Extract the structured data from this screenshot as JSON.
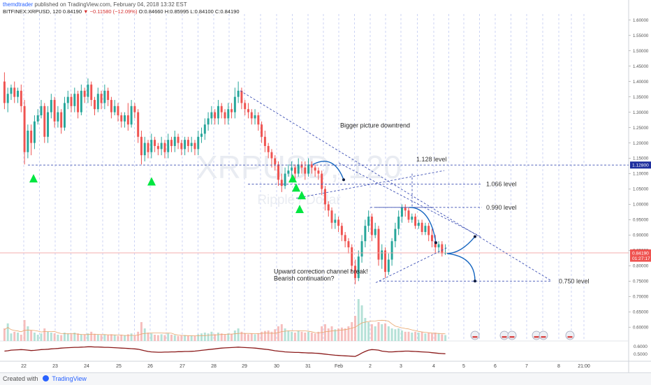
{
  "header": {
    "author": "themdtrader",
    "published": "published on TradingView.com, February 04, 2018 13:32 EST",
    "symbol": "BITFINEX:XRPUSD, 120",
    "last": "0.84190",
    "change": "−0.11580 (−12.09%)",
    "open": "O:0.84660",
    "high": "H:0.85995",
    "low": "L:0.84100",
    "close": "C:0.84190"
  },
  "footer": {
    "created_with": "Created with",
    "brand": "TradingView"
  },
  "watermark": {
    "symbol": "XRPUSD, 120",
    "name": "Ripple / Dollar"
  },
  "colors": {
    "up": "#26a69a",
    "down": "#ef5350",
    "accent": "#2962ff",
    "level": "#3f51b5",
    "arrow": "#1565c0",
    "signal": "#00e640",
    "ind": "#8b1a1a"
  },
  "chart_data": {
    "type": "candlestick",
    "symbol": "BITFINEX:XRPUSD",
    "interval": "120",
    "ylim": [
      0.555,
      1.62
    ],
    "y_ticks": [
      "1.60000",
      "1.55000",
      "1.50000",
      "1.45000",
      "1.40000",
      "1.35000",
      "1.30000",
      "1.25000",
      "1.20000",
      "1.15000",
      "1.10000",
      "1.05000",
      "1.00000",
      "0.95000",
      "0.90000",
      "0.85000",
      "0.80000",
      "0.75000",
      "0.70000",
      "0.65000",
      "0.60000"
    ],
    "x_ticks": [
      "22",
      "23",
      "24",
      "25",
      "26",
      "27",
      "28",
      "29",
      "30",
      "31",
      "Feb",
      "2",
      "3",
      "4",
      "5",
      "6",
      "7",
      "8",
      "21:00"
    ],
    "price_labels": [
      {
        "text": "1.12800",
        "value": 1.128
      },
      {
        "text": "0.84190",
        "value": 0.8419
      },
      {
        "text": "01:27:17",
        "value": 0.8245
      }
    ],
    "levels": [
      {
        "label": "1.128 level",
        "value": 1.128
      },
      {
        "label": "1.066 level",
        "value": 1.066
      },
      {
        "label": "0.990 level",
        "value": 0.99
      },
      {
        "label": "0.750 level",
        "value": 0.75
      }
    ],
    "annotations": [
      {
        "text": "Bigger picture downtrend"
      },
      {
        "text": "Upward correction channel break!"
      },
      {
        "text": "Bearish continuation?"
      }
    ],
    "series": [
      {
        "name": "XRPUSD",
        "open": [
          1.4,
          1.33,
          1.36,
          1.38,
          1.35,
          1.37,
          1.32,
          1.17,
          1.24,
          1.2,
          1.27,
          1.29,
          1.32,
          1.22,
          1.3,
          1.34,
          1.27,
          1.3,
          1.25,
          1.33,
          1.35,
          1.32,
          1.36,
          1.3,
          1.37,
          1.35,
          1.39,
          1.34,
          1.31,
          1.36,
          1.33,
          1.37,
          1.34,
          1.3,
          1.32,
          1.29,
          1.27,
          1.29,
          1.26,
          1.32,
          1.3,
          1.22,
          1.16,
          1.2,
          1.17,
          1.21,
          1.19,
          1.18,
          1.2,
          1.17,
          1.21,
          1.19,
          1.22,
          1.2,
          1.18,
          1.21,
          1.19,
          1.2,
          1.18,
          1.22,
          1.23,
          1.26,
          1.28,
          1.3,
          1.28,
          1.32,
          1.3,
          1.28,
          1.31,
          1.3,
          1.35,
          1.37,
          1.33,
          1.31,
          1.3,
          1.28,
          1.29,
          1.26,
          1.22,
          1.19,
          1.17,
          1.15,
          1.13,
          1.08,
          1.06,
          1.1,
          1.11,
          1.12,
          1.1,
          1.13,
          1.12,
          1.1,
          1.13,
          1.12,
          1.11,
          1.1,
          1.05,
          1.0,
          0.98,
          0.94,
          0.95,
          0.93,
          0.9,
          0.88,
          0.86,
          0.8,
          0.76,
          0.83,
          0.88,
          0.93,
          0.96,
          0.9,
          0.92,
          0.82,
          0.85,
          0.78,
          0.82,
          0.88,
          0.92,
          0.96,
          0.99,
          0.98,
          0.95,
          0.96,
          0.93,
          0.94,
          0.91,
          0.93,
          0.9,
          0.88,
          0.86,
          0.87,
          0.84
        ],
        "close": [
          1.33,
          1.36,
          1.38,
          1.35,
          1.37,
          1.32,
          1.17,
          1.24,
          1.2,
          1.27,
          1.29,
          1.32,
          1.22,
          1.3,
          1.34,
          1.27,
          1.3,
          1.25,
          1.33,
          1.35,
          1.32,
          1.36,
          1.3,
          1.37,
          1.35,
          1.39,
          1.34,
          1.31,
          1.36,
          1.33,
          1.37,
          1.34,
          1.3,
          1.32,
          1.29,
          1.27,
          1.29,
          1.26,
          1.32,
          1.3,
          1.22,
          1.16,
          1.2,
          1.17,
          1.21,
          1.19,
          1.18,
          1.2,
          1.17,
          1.21,
          1.19,
          1.22,
          1.2,
          1.18,
          1.21,
          1.19,
          1.2,
          1.18,
          1.22,
          1.23,
          1.26,
          1.28,
          1.3,
          1.28,
          1.32,
          1.3,
          1.28,
          1.31,
          1.3,
          1.35,
          1.37,
          1.33,
          1.31,
          1.3,
          1.28,
          1.29,
          1.26,
          1.22,
          1.19,
          1.17,
          1.15,
          1.13,
          1.08,
          1.06,
          1.1,
          1.11,
          1.12,
          1.1,
          1.13,
          1.12,
          1.1,
          1.13,
          1.12,
          1.11,
          1.1,
          1.05,
          1.0,
          0.98,
          0.94,
          0.95,
          0.93,
          0.9,
          0.88,
          0.86,
          0.8,
          0.76,
          0.83,
          0.88,
          0.93,
          0.96,
          0.9,
          0.92,
          0.82,
          0.85,
          0.78,
          0.82,
          0.88,
          0.92,
          0.96,
          0.99,
          0.98,
          0.95,
          0.96,
          0.93,
          0.94,
          0.91,
          0.93,
          0.9,
          0.88,
          0.86,
          0.87,
          0.84,
          0.842
        ],
        "high": [
          1.43,
          1.38,
          1.39,
          1.4,
          1.38,
          1.39,
          1.34,
          1.26,
          1.26,
          1.29,
          1.31,
          1.34,
          1.33,
          1.32,
          1.36,
          1.35,
          1.32,
          1.31,
          1.35,
          1.37,
          1.36,
          1.38,
          1.37,
          1.39,
          1.38,
          1.41,
          1.4,
          1.35,
          1.38,
          1.37,
          1.39,
          1.38,
          1.35,
          1.34,
          1.33,
          1.3,
          1.3,
          1.33,
          1.34,
          1.33,
          1.31,
          1.24,
          1.22,
          1.21,
          1.23,
          1.22,
          1.2,
          1.22,
          1.21,
          1.23,
          1.22,
          1.24,
          1.23,
          1.21,
          1.22,
          1.22,
          1.22,
          1.21,
          1.24,
          1.25,
          1.28,
          1.3,
          1.32,
          1.31,
          1.34,
          1.33,
          1.31,
          1.33,
          1.33,
          1.38,
          1.4,
          1.38,
          1.34,
          1.33,
          1.31,
          1.31,
          1.3,
          1.27,
          1.24,
          1.2,
          1.18,
          1.16,
          1.14,
          1.1,
          1.12,
          1.13,
          1.14,
          1.13,
          1.15,
          1.14,
          1.14,
          1.15,
          1.14,
          1.13,
          1.12,
          1.11,
          1.06,
          1.01,
          0.99,
          0.97,
          0.96,
          0.94,
          0.91,
          0.89,
          0.87,
          0.82,
          0.85,
          0.9,
          0.95,
          0.98,
          0.97,
          0.94,
          0.93,
          0.87,
          0.86,
          0.84,
          0.89,
          0.94,
          0.98,
          1.0,
          1.0,
          0.99,
          0.97,
          0.97,
          0.95,
          0.95,
          0.94,
          0.94,
          0.92,
          0.9,
          0.88,
          0.88,
          0.87
        ],
        "low": [
          1.31,
          1.3,
          1.34,
          1.33,
          1.33,
          1.3,
          1.13,
          1.15,
          1.16,
          1.18,
          1.26,
          1.28,
          1.2,
          1.2,
          1.28,
          1.25,
          1.25,
          1.23,
          1.24,
          1.31,
          1.3,
          1.3,
          1.28,
          1.29,
          1.33,
          1.33,
          1.32,
          1.29,
          1.3,
          1.31,
          1.31,
          1.32,
          1.28,
          1.29,
          1.27,
          1.25,
          1.25,
          1.24,
          1.25,
          1.28,
          1.2,
          1.13,
          1.14,
          1.15,
          1.15,
          1.17,
          1.16,
          1.16,
          1.15,
          1.15,
          1.17,
          1.17,
          1.18,
          1.16,
          1.16,
          1.17,
          1.17,
          1.16,
          1.16,
          1.2,
          1.21,
          1.24,
          1.26,
          1.26,
          1.26,
          1.28,
          1.26,
          1.26,
          1.28,
          1.28,
          1.33,
          1.31,
          1.29,
          1.28,
          1.26,
          1.26,
          1.24,
          1.2,
          1.17,
          1.15,
          1.12,
          1.11,
          1.06,
          1.04,
          1.05,
          1.09,
          1.09,
          1.08,
          1.09,
          1.1,
          1.08,
          1.09,
          1.1,
          1.09,
          1.08,
          1.03,
          0.98,
          0.96,
          0.92,
          0.92,
          0.91,
          0.88,
          0.86,
          0.84,
          0.78,
          0.74,
          0.75,
          0.81,
          0.86,
          0.91,
          0.88,
          0.89,
          0.8,
          0.79,
          0.76,
          0.77,
          0.8,
          0.86,
          0.9,
          0.94,
          0.96,
          0.94,
          0.94,
          0.92,
          0.92,
          0.9,
          0.9,
          0.88,
          0.86,
          0.84,
          0.84,
          0.83,
          0.835
        ],
        "volume": [
          0.3,
          0.42,
          0.18,
          0.22,
          0.2,
          0.15,
          0.5,
          0.35,
          0.25,
          0.2,
          0.15,
          0.18,
          0.3,
          0.22,
          0.2,
          0.18,
          0.15,
          0.14,
          0.2,
          0.18,
          0.16,
          0.2,
          0.18,
          0.16,
          0.15,
          0.18,
          0.22,
          0.17,
          0.15,
          0.14,
          0.16,
          0.14,
          0.16,
          0.14,
          0.12,
          0.15,
          0.14,
          0.16,
          0.18,
          0.14,
          0.22,
          0.45,
          0.3,
          0.2,
          0.18,
          0.15,
          0.14,
          0.16,
          0.14,
          0.18,
          0.15,
          0.14,
          0.12,
          0.13,
          0.14,
          0.12,
          0.13,
          0.12,
          0.16,
          0.18,
          0.2,
          0.18,
          0.22,
          0.16,
          0.2,
          0.18,
          0.16,
          0.18,
          0.17,
          0.25,
          0.3,
          0.22,
          0.18,
          0.16,
          0.18,
          0.16,
          0.18,
          0.22,
          0.24,
          0.25,
          0.22,
          0.28,
          0.35,
          0.4,
          0.3,
          0.25,
          0.22,
          0.2,
          0.24,
          0.22,
          0.2,
          0.22,
          0.2,
          0.18,
          0.22,
          0.35,
          0.4,
          0.3,
          0.35,
          0.28,
          0.3,
          0.32,
          0.3,
          0.35,
          0.45,
          0.6,
          1.0,
          0.85,
          0.55,
          0.45,
          0.4,
          0.35,
          0.45,
          0.4,
          0.42,
          0.35,
          0.3,
          0.28,
          0.3,
          0.25,
          0.22,
          0.22,
          0.2,
          0.22,
          0.2,
          0.22,
          0.18,
          0.2,
          0.18,
          0.2,
          0.18,
          0.16,
          0.14
        ],
        "indicator": [
          0.5,
          0.52,
          0.55,
          0.56,
          0.57,
          0.58,
          0.57,
          0.55,
          0.53,
          0.54,
          0.56,
          0.58,
          0.59,
          0.6,
          0.62,
          0.63,
          0.64,
          0.66,
          0.67,
          0.68,
          0.69,
          0.7,
          0.7,
          0.71,
          0.72,
          0.73,
          0.73,
          0.72,
          0.72,
          0.71,
          0.7,
          0.7,
          0.69,
          0.68,
          0.67,
          0.66,
          0.65,
          0.64,
          0.63,
          0.62,
          0.6,
          0.56,
          0.52,
          0.48,
          0.46,
          0.45,
          0.44,
          0.44,
          0.45,
          0.45,
          0.46,
          0.46,
          0.47,
          0.47,
          0.48,
          0.48,
          0.49,
          0.5,
          0.52,
          0.54,
          0.56,
          0.58,
          0.6,
          0.62,
          0.64,
          0.66,
          0.67,
          0.68,
          0.69,
          0.7,
          0.71,
          0.7,
          0.69,
          0.68,
          0.67,
          0.66,
          0.64,
          0.62,
          0.6,
          0.58,
          0.55,
          0.52,
          0.5,
          0.48,
          0.46,
          0.45,
          0.44,
          0.43,
          0.43,
          0.42,
          0.41,
          0.4,
          0.4,
          0.39,
          0.38,
          0.36,
          0.34,
          0.32,
          0.3,
          0.28,
          0.27,
          0.26,
          0.25,
          0.24,
          0.23,
          0.22,
          0.3,
          0.4,
          0.48,
          0.55,
          0.58,
          0.57,
          0.55,
          0.5,
          0.48,
          0.46,
          0.46,
          0.47,
          0.48,
          0.49,
          0.5,
          0.5,
          0.49,
          0.48,
          0.47,
          0.46,
          0.45,
          0.44,
          0.42,
          0.4,
          0.38,
          0.37,
          0.36
        ]
      }
    ]
  }
}
